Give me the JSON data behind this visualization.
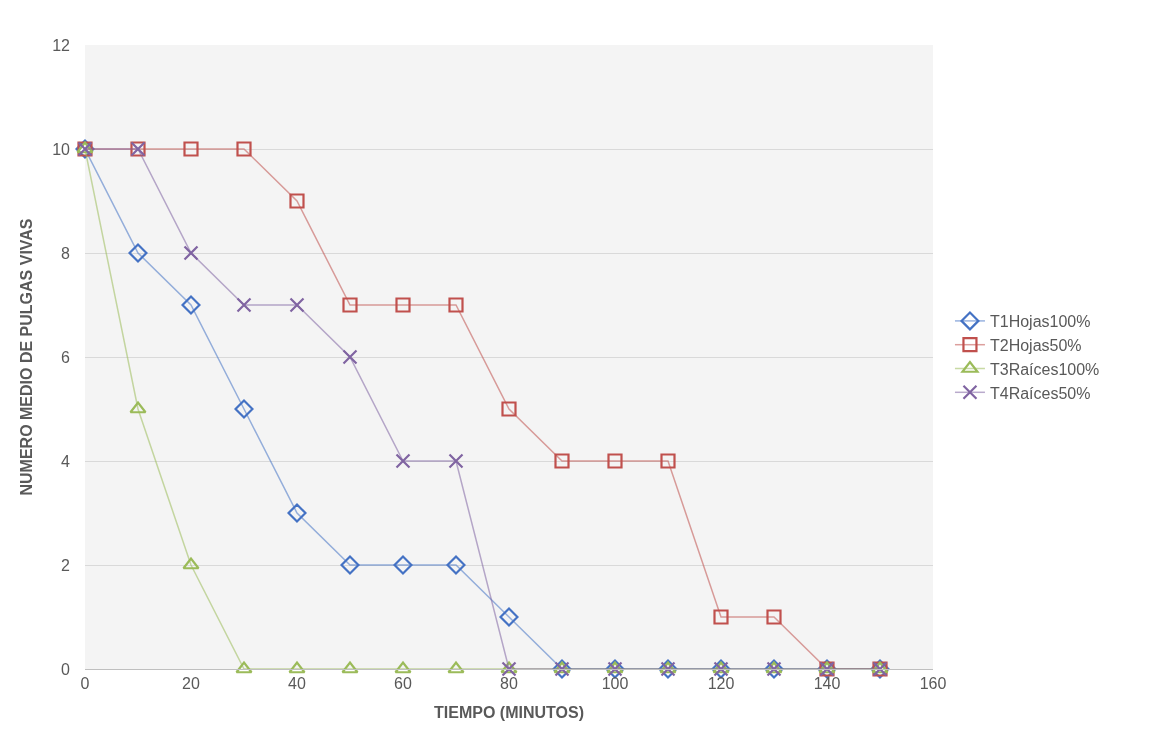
{
  "chart_data": {
    "type": "line",
    "xlabel": "TIEMPO (MINUTOS)",
    "ylabel": "NUMERO MEDIO DE PULGAS VIVAS",
    "x": [
      0,
      10,
      20,
      30,
      40,
      50,
      60,
      70,
      80,
      90,
      100,
      110,
      120,
      130,
      140,
      150
    ],
    "series": [
      {
        "name": "T1Hojas100%",
        "color": "#4472c4",
        "marker": "diamond",
        "values": [
          10,
          8,
          7,
          5,
          3,
          2,
          2,
          2,
          1,
          0,
          0,
          0,
          0,
          0,
          0,
          0
        ]
      },
      {
        "name": "T2Hojas50%",
        "color": "#c0504d",
        "marker": "square",
        "values": [
          10,
          10,
          10,
          10,
          9,
          7,
          7,
          7,
          5,
          4,
          4,
          4,
          1,
          1,
          0,
          0
        ]
      },
      {
        "name": "T3Raíces100%",
        "color": "#9bbb59",
        "marker": "triangle",
        "values": [
          10,
          5,
          2,
          0,
          0,
          0,
          0,
          0,
          0,
          0,
          0,
          0,
          0,
          0,
          0,
          0
        ]
      },
      {
        "name": "T4Raíces50%",
        "color": "#8064a2",
        "marker": "cross",
        "values": [
          10,
          10,
          8,
          7,
          7,
          6,
          4,
          4,
          0,
          0,
          0,
          0,
          0,
          0,
          0,
          0
        ]
      }
    ],
    "xlim": [
      0,
      160
    ],
    "xticks": [
      0,
      20,
      40,
      60,
      80,
      100,
      120,
      140,
      160
    ],
    "ylim": [
      0,
      12
    ],
    "yticks": [
      0,
      2,
      4,
      6,
      8,
      10,
      12
    ],
    "grid": "y",
    "legend": "right",
    "line_style": "solid"
  }
}
